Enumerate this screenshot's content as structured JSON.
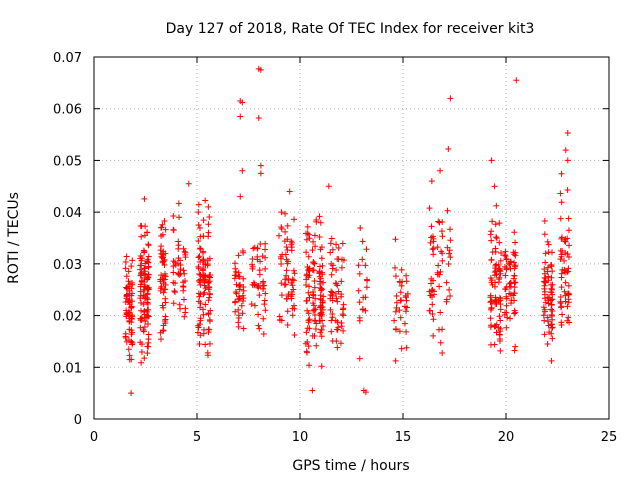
{
  "chart_data": {
    "type": "scatter",
    "title": "Day 127 of 2018, Rate Of TEC Index for receiver kit3",
    "xlabel": "GPS time / hours",
    "ylabel": "ROTI / TECUs",
    "xlim": [
      0,
      25
    ],
    "ylim": [
      0,
      0.07
    ],
    "grid": true,
    "marker": "+",
    "color": "#ff0000",
    "x_ticks": [
      "0",
      "5",
      "10",
      "15",
      "20",
      "25"
    ],
    "x_tick_values": [
      0,
      5,
      10,
      15,
      20,
      25
    ],
    "y_ticks": [
      "0",
      "0.01",
      "0.02",
      "0.03",
      "0.04",
      "0.05",
      "0.06",
      "0.07"
    ],
    "y_tick_values": [
      0,
      0.01,
      0.02,
      0.03,
      0.04,
      0.05,
      0.06,
      0.07
    ],
    "clusters": [
      {
        "x": [
          1.5,
          1.9
        ],
        "y": [
          0.007,
          0.035
        ],
        "n": 70
      },
      {
        "x": [
          2.2,
          2.7
        ],
        "y": [
          0.008,
          0.044
        ],
        "n": 110
      },
      {
        "x": [
          3.2,
          3.5
        ],
        "y": [
          0.009,
          0.046
        ],
        "n": 55
      },
      {
        "x": [
          3.8,
          4.5
        ],
        "y": [
          0.012,
          0.045
        ],
        "n": 45
      },
      {
        "x": [
          5.0,
          5.7
        ],
        "y": [
          0.007,
          0.046
        ],
        "n": 100
      },
      {
        "x": [
          6.8,
          7.3
        ],
        "y": [
          0.013,
          0.037
        ],
        "n": 40
      },
      {
        "x": [
          7.6,
          8.4
        ],
        "y": [
          0.012,
          0.04
        ],
        "n": 45
      },
      {
        "x": [
          8.9,
          9.8
        ],
        "y": [
          0.01,
          0.044
        ],
        "n": 60
      },
      {
        "x": [
          10.2,
          11.2
        ],
        "y": [
          0.005,
          0.045
        ],
        "n": 120
      },
      {
        "x": [
          11.4,
          12.2
        ],
        "y": [
          0.008,
          0.039
        ],
        "n": 55
      },
      {
        "x": [
          12.8,
          13.3
        ],
        "y": [
          0.01,
          0.042
        ],
        "n": 20
      },
      {
        "x": [
          14.5,
          15.3
        ],
        "y": [
          0.008,
          0.037
        ],
        "n": 35
      },
      {
        "x": [
          16.2,
          17.4
        ],
        "y": [
          0.01,
          0.047
        ],
        "n": 60
      },
      {
        "x": [
          19.2,
          19.8
        ],
        "y": [
          0.007,
          0.047
        ],
        "n": 80
      },
      {
        "x": [
          19.9,
          20.5
        ],
        "y": [
          0.009,
          0.044
        ],
        "n": 60
      },
      {
        "x": [
          21.8,
          22.3
        ],
        "y": [
          0.007,
          0.043
        ],
        "n": 70
      },
      {
        "x": [
          22.6,
          23.1
        ],
        "y": [
          0.007,
          0.052
        ],
        "n": 55
      }
    ],
    "points": [
      {
        "x": 7.1,
        "y": 0.0615
      },
      {
        "x": 7.2,
        "y": 0.0612
      },
      {
        "x": 7.1,
        "y": 0.0585
      },
      {
        "x": 7.2,
        "y": 0.048
      },
      {
        "x": 7.1,
        "y": 0.043
      },
      {
        "x": 8.0,
        "y": 0.0677
      },
      {
        "x": 8.1,
        "y": 0.0675
      },
      {
        "x": 8.0,
        "y": 0.0582
      },
      {
        "x": 8.1,
        "y": 0.049
      },
      {
        "x": 8.1,
        "y": 0.0475
      },
      {
        "x": 17.3,
        "y": 0.062
      },
      {
        "x": 17.2,
        "y": 0.0522
      },
      {
        "x": 20.5,
        "y": 0.0655
      },
      {
        "x": 19.3,
        "y": 0.05
      },
      {
        "x": 23.0,
        "y": 0.0553
      },
      {
        "x": 22.9,
        "y": 0.052
      },
      {
        "x": 23.0,
        "y": 0.05
      },
      {
        "x": 13.1,
        "y": 0.0055
      },
      {
        "x": 13.2,
        "y": 0.0052
      },
      {
        "x": 1.8,
        "y": 0.005
      },
      {
        "x": 10.6,
        "y": 0.0055
      },
      {
        "x": 9.5,
        "y": 0.044
      },
      {
        "x": 11.4,
        "y": 0.045
      },
      {
        "x": 4.6,
        "y": 0.0455
      },
      {
        "x": 16.8,
        "y": 0.048
      },
      {
        "x": 16.4,
        "y": 0.046
      }
    ]
  }
}
